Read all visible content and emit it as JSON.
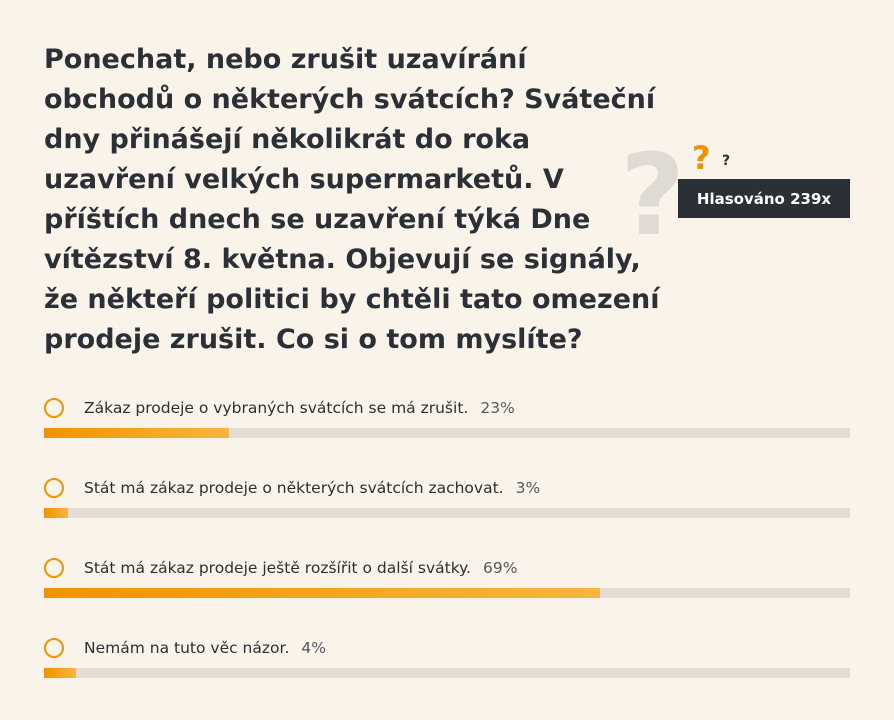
{
  "question": "Ponechat, nebo zrušit uzavírání obchodů o některých svátcích? Sváteční dny přinášejí několikrát do roka uzavření velkých supermarketů. V příštích dnech se uzavření týká Dne vítězství 8. května. Objevují se signály, že někteří politici by chtěli tato omezení prodeje zrušit. Co si o tom myslíte?",
  "votes_badge": "Hlasováno 239x",
  "decoration": {
    "big_glyph": "?",
    "orange_glyph": "?",
    "small_glyph": "?",
    "icon": "question-marks-icon",
    "accent_color": "#f39200"
  },
  "options": [
    {
      "label": "Zákaz prodeje o vybraných svátcích se má zrušit.",
      "percent_label": "23%",
      "percent": 23
    },
    {
      "label": "Stát má zákaz prodeje o některých svátcích zachovat.",
      "percent_label": "3%",
      "percent": 3
    },
    {
      "label": "Stát má zákaz prodeje ještě rozšířit o další svátky.",
      "percent_label": "69%",
      "percent": 69
    },
    {
      "label": "Nemám na tuto věc názor.",
      "percent_label": "4%",
      "percent": 4
    }
  ]
}
